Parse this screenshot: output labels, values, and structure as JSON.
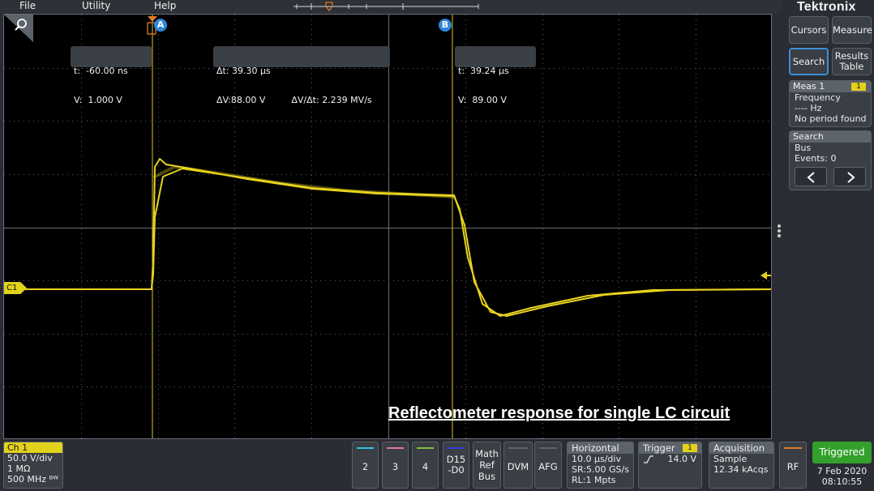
{
  "menu": {
    "file": "File",
    "utility": "Utility",
    "help": "Help"
  },
  "brand": {
    "logo": "Tektronix"
  },
  "cursors": {
    "a": {
      "badge": "A",
      "t_label": "t:",
      "t_value": "-60.00 ns",
      "v_label": "V:",
      "v_value": "1.000 V"
    },
    "delta": {
      "dt_label": "Δt:",
      "dt_value": "39.30 µs",
      "dv_label": "ΔV:",
      "dv_value": "88.00 V",
      "ratio_label": "ΔV/Δt:",
      "ratio_value": "2.239 MV/s"
    },
    "b": {
      "badge": "B",
      "t_label": "t:",
      "t_value": "39.24 µs",
      "v_label": "V:",
      "v_value": "89.00 V"
    }
  },
  "plot": {
    "channel_marker": "C1",
    "caption": "Reflectometer response for single LC circuit",
    "trace_color": "#e8d31e"
  },
  "side": {
    "cursors_btn": "Cursors",
    "measure_btn": "Measure",
    "search_btn": "Search",
    "results_btn_l1": "Results",
    "results_btn_l2": "Table",
    "meas": {
      "title": "Meas 1",
      "badge": "1",
      "line1": "Frequency",
      "line2": "---- Hz",
      "line3": "No period found"
    },
    "search": {
      "title": "Search",
      "line1": "Bus",
      "line2": "Events: 0"
    }
  },
  "bottom": {
    "ch1": {
      "title": "Ch 1",
      "scale": "50.0 V/div",
      "impedance": "1 MΩ",
      "bandwidth": "500 MHz ᴮᵂ"
    },
    "ch2": "2",
    "ch3": "3",
    "ch4": "4",
    "digital_l1": "D15",
    "digital_l2": "-D0",
    "math_l1": "Math",
    "math_l2": "Ref",
    "math_l3": "Bus",
    "dvm": "DVM",
    "afg": "AFG",
    "horizontal": {
      "title": "Horizontal",
      "scale": "10.0 µs/div",
      "sample_rate": "SR:5.00 GS/s",
      "record_length": "RL:1 Mpts"
    },
    "trigger": {
      "title": "Trigger",
      "badge": "1",
      "level": "14.0 V"
    },
    "acquisition": {
      "title": "Acquisition",
      "mode": "Sample",
      "count": "12.34 kAcqs"
    },
    "rf": "RF",
    "status": "Triggered",
    "date": "7 Feb 2020",
    "time": "08:10:55"
  },
  "colors": {
    "accent_yellow": "#e3d21c",
    "status_green": "#33a02c",
    "cursor_blue": "#2f86d8",
    "ch2": "#2fc4d8",
    "ch3": "#e07aa8",
    "ch4": "#7cc43a",
    "digital": "#3a3fd8"
  }
}
